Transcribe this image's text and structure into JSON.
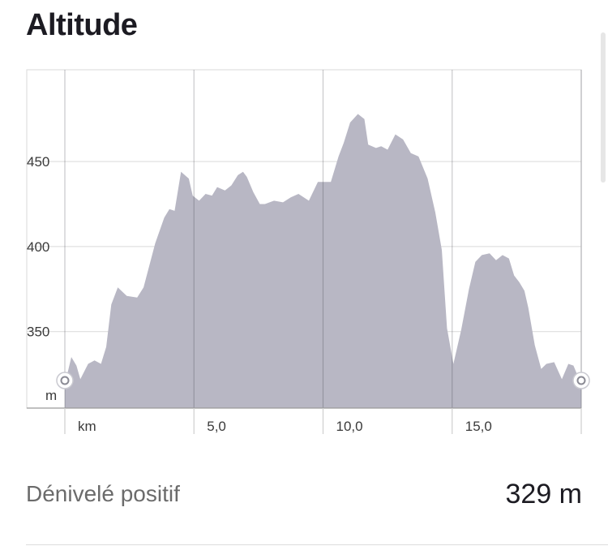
{
  "section": {
    "title": "Altitude"
  },
  "chart_data": {
    "type": "area",
    "title": "Altitude",
    "xlabel": "km",
    "ylabel": "m",
    "x_unit_label": "km",
    "y_unit_label": "m",
    "xlim": [
      0,
      20
    ],
    "ylim": [
      305,
      504
    ],
    "x_ticks": [
      {
        "value": 5,
        "label": "5,0"
      },
      {
        "value": 10,
        "label": "10,0"
      },
      {
        "value": 15,
        "label": "15,0"
      }
    ],
    "y_ticks": [
      {
        "value": 350,
        "label": "350"
      },
      {
        "value": 400,
        "label": "400"
      },
      {
        "value": 450,
        "label": "450"
      }
    ],
    "grid": true,
    "fill_color": "#b8b7c4",
    "series": [
      {
        "x": [
          0,
          0.25,
          0.45,
          0.6,
          0.9,
          1.15,
          1.4,
          1.6,
          1.8,
          2.05,
          2.4,
          2.8,
          3.05,
          3.5,
          3.85,
          4.05,
          4.25,
          4.5,
          4.8,
          4.95,
          5.2,
          5.45,
          5.7,
          5.9,
          6.2,
          6.45,
          6.7,
          6.9,
          7.05,
          7.3,
          7.55,
          7.75,
          8.1,
          8.45,
          8.75,
          9.05,
          9.45,
          9.8,
          10.05,
          10.3,
          10.6,
          10.8,
          11.05,
          11.35,
          11.6,
          11.75,
          12.05,
          12.25,
          12.5,
          12.8,
          13.1,
          13.4,
          13.7,
          14.05,
          14.35,
          14.6,
          14.8,
          15.05,
          15.35,
          15.65,
          15.9,
          16.15,
          16.45,
          16.7,
          16.95,
          17.2,
          17.4,
          17.6,
          17.8,
          17.95,
          18.2,
          18.45,
          18.65,
          18.95,
          19.25,
          19.5,
          19.7,
          20
        ],
        "y": [
          319,
          335,
          330,
          322,
          331,
          333,
          331,
          341,
          366,
          376,
          371,
          370,
          376,
          402,
          417,
          422,
          421,
          444,
          440,
          430,
          427,
          431,
          430,
          435,
          433,
          436,
          442,
          444,
          441,
          432,
          425,
          425,
          427,
          426,
          429,
          431,
          427,
          438,
          438,
          438,
          453,
          461,
          473,
          478,
          475,
          460,
          458,
          459,
          457,
          466,
          463,
          455,
          453,
          440,
          420,
          398,
          352,
          331,
          351,
          375,
          391,
          395,
          396,
          392,
          395,
          393,
          383,
          379,
          374,
          364,
          342,
          328,
          331,
          332,
          322,
          331,
          330,
          319
        ]
      }
    ]
  },
  "stats": {
    "label": "Dénivelé positif",
    "value": "329 m"
  }
}
